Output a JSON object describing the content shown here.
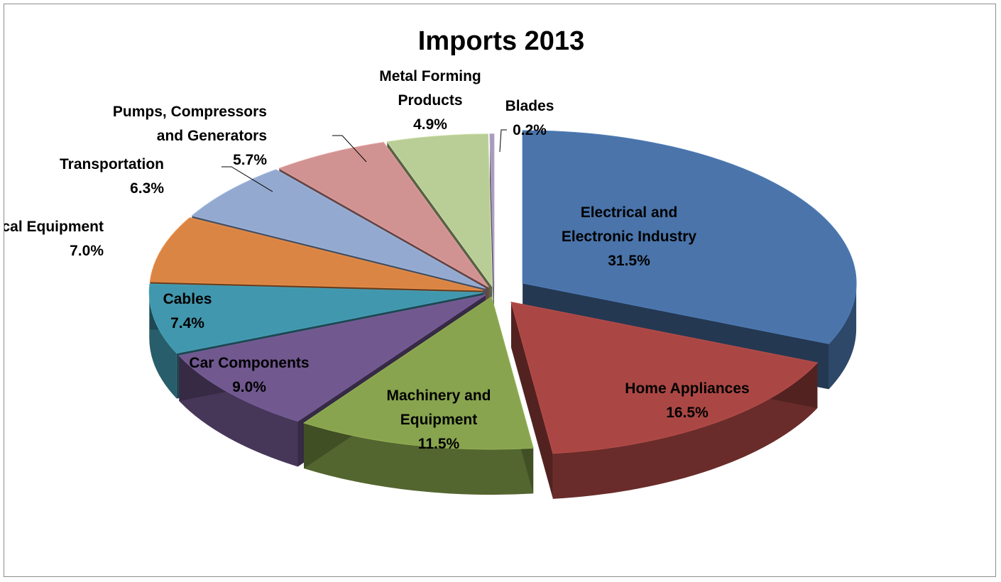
{
  "chart_data": {
    "type": "pie",
    "title": "Imports 2013",
    "categories": [
      "Electrical and Electronic Industry",
      "Home Appliances",
      "Machinery and Equipment",
      "Car Components",
      "Cables",
      "Medical Equipment",
      "Transportation",
      "Pumps, Compressors and Generators",
      "Metal Forming Products",
      "Blades"
    ],
    "values": [
      31.5,
      16.5,
      11.5,
      9.0,
      7.4,
      7.0,
      6.3,
      5.7,
      4.9,
      0.2
    ],
    "value_labels": [
      "31.5%",
      "16.5%",
      "11.5%",
      "9.0%",
      "7.4%",
      "7.0%",
      "6.3%",
      "5.7%",
      "4.9%",
      "0.2%"
    ],
    "label_lines": [
      [
        "Electrical and",
        "Electronic Industry"
      ],
      [
        "Home Appliances"
      ],
      [
        "Machinery and",
        "Equipment"
      ],
      [
        "Car Components"
      ],
      [
        "Cables"
      ],
      [
        "Medical Equipment"
      ],
      [
        "Transportation"
      ],
      [
        "Pumps, Compressors",
        "and Generators"
      ],
      [
        "Metal Forming",
        "Products"
      ],
      [
        "Blades"
      ]
    ],
    "colors": [
      "#4a74aa",
      "#aa4744",
      "#88a44e",
      "#71588f",
      "#4197ad",
      "#db8544",
      "#93a9cf",
      "#d19392",
      "#b9cd96",
      "#a89bbd"
    ],
    "legend": "none",
    "style": "3d exploded"
  }
}
